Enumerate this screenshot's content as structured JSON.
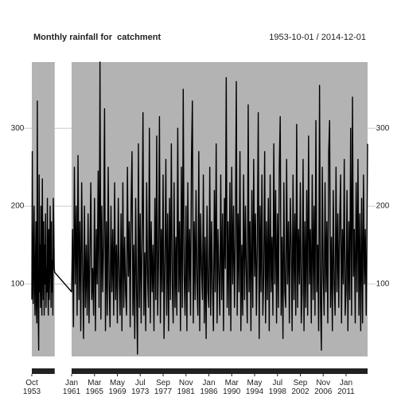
{
  "chart_data": {
    "type": "line",
    "title": "Monthly rainfall for  catchment",
    "subtitle": "1953-10-01 / 2014-12-01",
    "color": "#000000",
    "background": "#b3b3b3",
    "grid": true,
    "ylim": [
      7,
      385
    ],
    "yticks": [
      100,
      200,
      300
    ],
    "xlim": [
      "1953-10",
      "2014-12"
    ],
    "xticks": [
      {
        "value": "1953-10",
        "label": "Oct 1953"
      },
      {
        "value": "1961-01",
        "label": "Jan 1961"
      },
      {
        "value": "1965-03",
        "label": "Mar 1965"
      },
      {
        "value": "1969-05",
        "label": "May 1969"
      },
      {
        "value": "1973-07",
        "label": "Jul 1973"
      },
      {
        "value": "1977-09",
        "label": "Sep 1977"
      },
      {
        "value": "1981-11",
        "label": "Nov 1981"
      },
      {
        "value": "1986-01",
        "label": "Jan 1986"
      },
      {
        "value": "1990-03",
        "label": "Mar 1990"
      },
      {
        "value": "1994-05",
        "label": "May 1994"
      },
      {
        "value": "1998-07",
        "label": "Jul 1998"
      },
      {
        "value": "2002-09",
        "label": "Sep 2002"
      },
      {
        "value": "2006-11",
        "label": "Nov 2006"
      },
      {
        "value": "2011-01",
        "label": "Jan 2011"
      }
    ],
    "x": [
      "1953-10",
      "1953-11",
      "1953-12",
      "1954-01",
      "1954-02",
      "1954-03",
      "1954-04",
      "1954-05",
      "1954-06",
      "1954-07",
      "1954-08",
      "1954-09",
      "1954-10",
      "1954-11",
      "1954-12",
      "1955-01",
      "1955-02",
      "1955-03",
      "1955-04",
      "1955-05",
      "1955-06",
      "1955-07",
      "1955-08",
      "1955-09",
      "1955-10",
      "1955-11",
      "1955-12",
      "1956-01",
      "1956-02",
      "1956-03",
      "1956-04",
      "1956-05",
      "1956-06",
      "1956-07",
      "1956-08",
      "1956-09",
      "1956-10",
      "1956-11",
      "1956-12",
      "1957-01",
      "1957-02",
      "1957-03",
      "1957-04",
      "1957-05",
      "1957-06",
      "1957-07",
      "1957-08",
      "1957-09",
      "1957-10",
      "1957-11",
      "1957-12",
      "1961-01",
      "1961-03",
      "1961-05",
      "1961-07",
      "1961-09",
      "1961-11",
      "1962-01",
      "1962-03",
      "1962-05",
      "1962-07",
      "1962-09",
      "1962-11",
      "1963-01",
      "1963-03",
      "1963-05",
      "1963-07",
      "1963-09",
      "1963-11",
      "1964-01",
      "1964-03",
      "1964-05",
      "1964-07",
      "1964-09",
      "1964-11",
      "1965-01",
      "1965-03",
      "1965-05",
      "1965-07",
      "1965-09",
      "1965-11",
      "1966-01",
      "1966-03",
      "1966-05",
      "1966-07",
      "1966-09",
      "1966-11",
      "1967-01",
      "1967-03",
      "1967-05",
      "1967-07",
      "1967-09",
      "1967-11",
      "1968-01",
      "1968-03",
      "1968-05",
      "1968-07",
      "1968-09",
      "1968-11",
      "1969-01",
      "1969-03",
      "1969-05",
      "1969-07",
      "1969-09",
      "1969-11",
      "1970-01",
      "1970-03",
      "1970-05",
      "1970-07",
      "1970-09",
      "1970-11",
      "1971-01",
      "1971-03",
      "1971-05",
      "1971-07",
      "1971-09",
      "1971-11",
      "1972-01",
      "1972-03",
      "1972-05",
      "1972-07",
      "1972-09",
      "1972-11",
      "1973-01",
      "1973-03",
      "1973-05",
      "1973-07",
      "1973-09",
      "1973-11",
      "1974-01",
      "1974-03",
      "1974-05",
      "1974-07",
      "1974-09",
      "1974-11",
      "1975-01",
      "1975-03",
      "1975-05",
      "1975-07",
      "1975-09",
      "1975-11",
      "1976-01",
      "1976-03",
      "1976-05",
      "1976-07",
      "1976-09",
      "1976-11",
      "1977-01",
      "1977-03",
      "1977-05",
      "1977-07",
      "1977-09",
      "1977-11",
      "1978-01",
      "1978-03",
      "1978-05",
      "1978-07",
      "1978-09",
      "1978-11",
      "1979-01",
      "1979-03",
      "1979-05",
      "1979-07",
      "1979-09",
      "1979-11",
      "1980-01",
      "1980-03",
      "1980-05",
      "1980-07",
      "1980-09",
      "1980-11",
      "1981-01",
      "1981-03",
      "1981-05",
      "1981-07",
      "1981-09",
      "1981-11",
      "1982-01",
      "1982-03",
      "1982-05",
      "1982-07",
      "1982-09",
      "1982-11",
      "1983-01",
      "1983-03",
      "1983-05",
      "1983-07",
      "1983-09",
      "1983-11",
      "1984-01",
      "1984-03",
      "1984-05",
      "1984-07",
      "1984-09",
      "1984-11",
      "1985-01",
      "1985-03",
      "1985-05",
      "1985-07",
      "1985-09",
      "1985-11",
      "1986-01",
      "1986-03",
      "1986-05",
      "1986-07",
      "1986-09",
      "1986-11",
      "1987-01",
      "1987-03",
      "1987-05",
      "1987-07",
      "1987-09",
      "1987-11",
      "1988-01",
      "1988-03",
      "1988-05",
      "1988-07",
      "1988-09",
      "1988-11",
      "1989-01",
      "1989-03",
      "1989-05",
      "1989-07",
      "1989-09",
      "1989-11",
      "1990-01",
      "1990-03",
      "1990-05",
      "1990-07",
      "1990-09",
      "1990-11",
      "1991-01",
      "1991-03",
      "1991-05",
      "1991-07",
      "1991-09",
      "1991-11",
      "1992-01",
      "1992-03",
      "1992-05",
      "1992-07",
      "1992-09",
      "1992-11",
      "1993-01",
      "1993-03",
      "1993-05",
      "1993-07",
      "1993-09",
      "1993-11",
      "1994-01",
      "1994-03",
      "1994-05",
      "1994-07",
      "1994-09",
      "1994-11",
      "1995-01",
      "1995-03",
      "1995-05",
      "1995-07",
      "1995-09",
      "1995-11",
      "1996-01",
      "1996-03",
      "1996-05",
      "1996-07",
      "1996-09",
      "1996-11",
      "1997-01",
      "1997-03",
      "1997-05",
      "1997-07",
      "1997-09",
      "1997-11",
      "1998-01",
      "1998-03",
      "1998-05",
      "1998-07",
      "1998-09",
      "1998-11",
      "1999-01",
      "1999-03",
      "1999-05",
      "1999-07",
      "1999-09",
      "1999-11",
      "2000-01",
      "2000-03",
      "2000-05",
      "2000-07",
      "2000-09",
      "2000-11",
      "2001-01",
      "2001-03",
      "2001-05",
      "2001-07",
      "2001-09",
      "2001-11",
      "2002-01",
      "2002-03",
      "2002-05",
      "2002-07",
      "2002-09",
      "2002-11",
      "2003-01",
      "2003-03",
      "2003-05",
      "2003-07",
      "2003-09",
      "2003-11",
      "2004-01",
      "2004-03",
      "2004-05",
      "2004-07",
      "2004-09",
      "2004-11",
      "2005-01",
      "2005-03",
      "2005-05",
      "2005-07",
      "2005-09",
      "2005-11",
      "2006-01",
      "2006-03",
      "2006-05",
      "2006-07",
      "2006-09",
      "2006-11",
      "2007-01",
      "2007-03",
      "2007-05",
      "2007-07",
      "2007-09",
      "2007-11",
      "2008-01",
      "2008-03",
      "2008-05",
      "2008-07",
      "2008-09",
      "2008-11",
      "2009-01",
      "2009-03",
      "2009-05",
      "2009-07",
      "2009-09",
      "2009-11",
      "2010-01",
      "2010-03",
      "2010-05",
      "2010-07",
      "2010-09",
      "2010-11",
      "2011-01",
      "2011-03",
      "2011-05",
      "2011-07",
      "2011-09",
      "2011-11",
      "2012-01",
      "2012-03",
      "2012-05",
      "2012-07",
      "2012-09",
      "2012-11",
      "2013-01",
      "2013-03",
      "2013-05",
      "2013-07",
      "2013-09",
      "2013-11",
      "2014-01",
      "2014-03",
      "2014-05",
      "2014-07",
      "2014-09",
      "2014-11",
      "2014-12"
    ],
    "values": [
      80,
      270,
      100,
      75,
      150,
      200,
      90,
      60,
      130,
      180,
      70,
      50,
      335,
      110,
      60,
      15,
      240,
      90,
      150,
      70,
      200,
      110,
      60,
      235,
      130,
      80,
      180,
      60,
      150,
      100,
      190,
      70,
      120,
      90,
      210,
      100,
      60,
      170,
      80,
      110,
      200,
      150,
      70,
      180,
      90,
      130,
      60,
      210,
      170,
      120,
      115,
      90,
      170,
      45,
      250,
      100,
      200,
      60,
      265,
      80,
      180,
      40,
      230,
      120,
      30,
      200,
      70,
      150,
      60,
      190,
      50,
      140,
      230,
      80,
      120,
      60,
      210,
      40,
      170,
      100,
      245,
      70,
      385,
      55,
      200,
      90,
      150,
      325,
      40,
      180,
      60,
      250,
      100,
      45,
      200,
      90,
      170,
      60,
      230,
      80,
      150,
      50,
      210,
      110,
      60,
      190,
      40,
      230,
      70,
      160,
      90,
      60,
      250,
      110,
      180,
      45,
      200,
      270,
      60,
      150,
      30,
      210,
      90,
      10,
      280,
      70,
      190,
      50,
      160,
      320,
      60,
      140,
      40,
      230,
      110,
      70,
      300,
      50,
      180,
      90,
      150,
      40,
      210,
      80,
      290,
      60,
      130,
      315,
      50,
      170,
      90,
      240,
      30,
      120,
      260,
      60,
      190,
      40,
      210,
      80,
      280,
      100,
      50,
      230,
      70,
      160,
      60,
      300,
      90,
      180,
      40,
      250,
      70,
      350,
      110,
      60,
      200,
      40,
      230,
      90,
      170,
      60,
      260,
      335,
      50,
      180,
      80,
      220,
      100,
      60,
      270,
      40,
      190,
      120,
      80,
      240,
      50,
      160,
      30,
      200,
      90,
      70,
      250,
      60,
      180,
      100,
      40,
      220,
      90,
      280,
      50,
      170,
      110,
      60,
      240,
      80,
      190,
      40,
      210,
      120,
      365,
      70,
      180,
      60,
      230,
      40,
      250,
      100,
      200,
      70,
      160,
      360,
      60,
      190,
      90,
      270,
      40,
      150,
      60,
      240,
      80,
      200,
      110,
      50,
      330,
      90,
      180,
      40,
      220,
      70,
      260,
      110,
      190,
      60,
      150,
      320,
      30,
      200,
      90,
      240,
      60,
      110,
      270,
      50,
      180,
      80,
      210,
      40,
      240,
      90,
      160,
      60,
      280,
      100,
      220,
      50,
      190,
      70,
      250,
      315,
      60,
      160,
      30,
      230,
      90,
      70,
      260,
      100,
      180,
      50,
      210,
      150,
      40,
      240,
      80,
      190,
      60,
      305,
      70,
      170,
      100,
      230,
      50,
      90,
      260,
      40,
      180,
      70,
      220,
      60,
      290,
      100,
      170,
      50,
      240,
      80,
      200,
      60,
      310,
      90,
      150,
      40,
      355,
      80,
      15,
      250,
      110,
      60,
      230,
      90,
      180,
      50,
      270,
      310,
      70,
      160,
      40,
      220,
      100,
      60,
      250,
      90,
      190,
      70,
      180,
      240,
      50,
      170,
      100,
      260,
      60,
      90,
      220,
      40,
      180,
      80,
      300,
      60,
      340,
      110,
      170,
      50,
      230,
      90,
      260,
      60,
      190,
      40,
      210,
      50,
      240,
      100,
      170,
      60,
      190,
      280
    ]
  }
}
